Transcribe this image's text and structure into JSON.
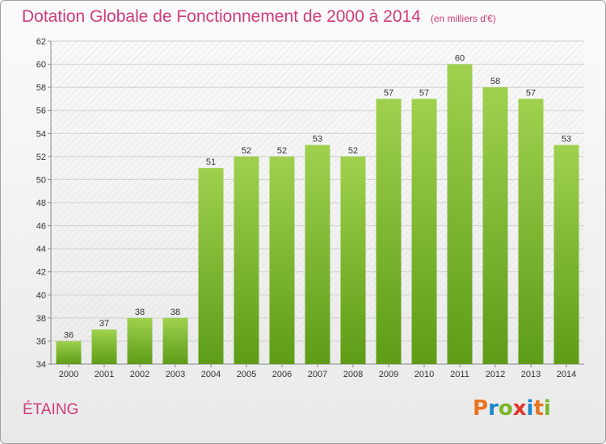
{
  "header": {
    "title": "Dotation Globale de Fonctionnement de 2000 à 2014",
    "subtitle": "(en milliers d'€)"
  },
  "commune": "ÉTAING",
  "logo": {
    "letters": [
      "P",
      "r",
      "o",
      "x",
      "i",
      "t",
      "i"
    ],
    "colors": [
      "#e8731f",
      "#1a88c9",
      "#7ab52a",
      "#e4352a",
      "#1a88c9",
      "#e8731f",
      "#7ab52a"
    ]
  },
  "chart_data": {
    "type": "bar",
    "title": "Dotation Globale de Fonctionnement de 2000 à 2014",
    "subtitle": "(en milliers d'€)",
    "categories": [
      "2000",
      "2001",
      "2002",
      "2003",
      "2004",
      "2005",
      "2006",
      "2007",
      "2008",
      "2009",
      "2010",
      "2011",
      "2012",
      "2013",
      "2014"
    ],
    "values": [
      36,
      37,
      38,
      38,
      51,
      52,
      52,
      53,
      52,
      57,
      57,
      60,
      58,
      57,
      53
    ],
    "ylim": [
      34,
      62
    ],
    "yticks": [
      34,
      36,
      38,
      40,
      42,
      44,
      46,
      48,
      50,
      52,
      54,
      56,
      58,
      60,
      62
    ],
    "grid": true,
    "bar_color": "#7cb832"
  }
}
